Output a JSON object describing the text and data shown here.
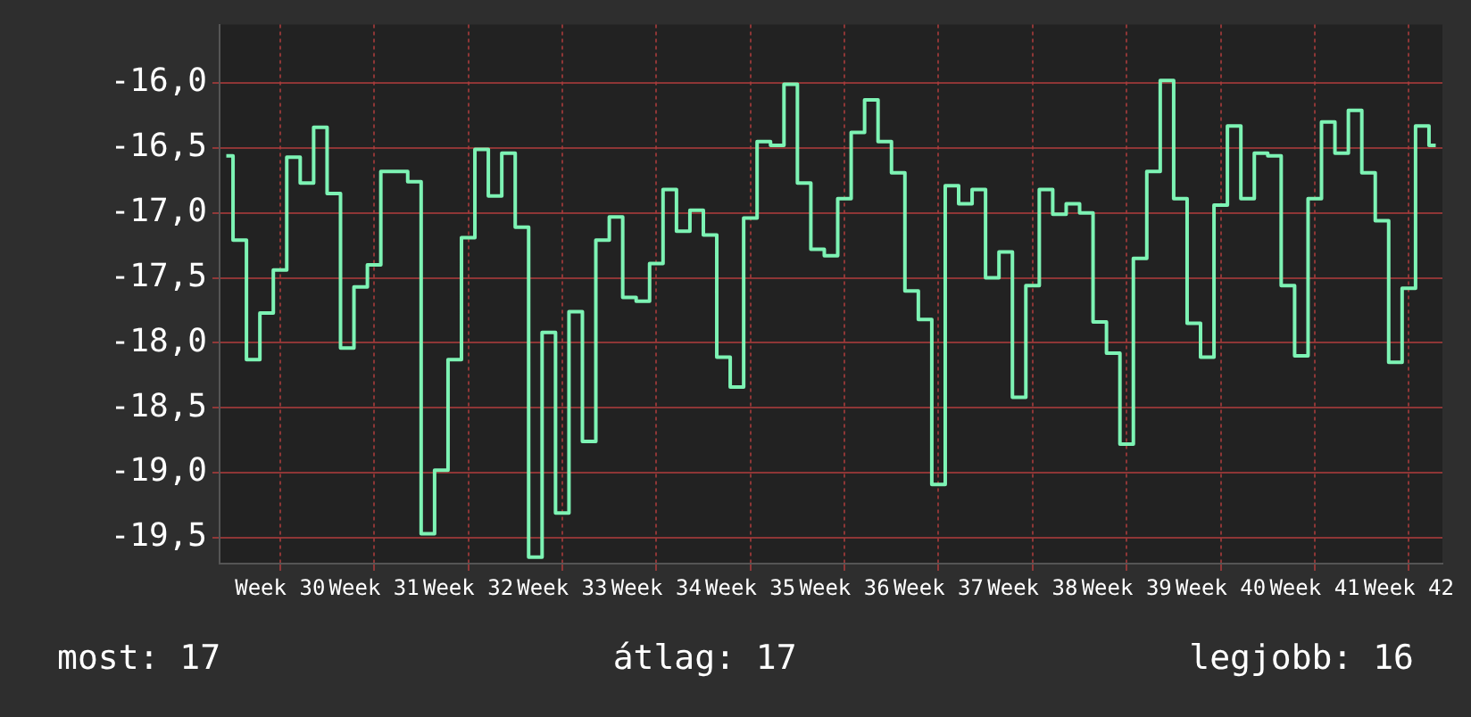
{
  "chart_data": {
    "type": "step",
    "categories": [
      null,
      null,
      null,
      null,
      "Week 30",
      null,
      null,
      null,
      null,
      null,
      null,
      "Week 31",
      null,
      null,
      null,
      null,
      null,
      null,
      "Week 32",
      null,
      null,
      null,
      null,
      null,
      null,
      "Week 33",
      null,
      null,
      null,
      null,
      null,
      null,
      "Week 34",
      null,
      null,
      null,
      null,
      null,
      null,
      "Week 35",
      null,
      null,
      null,
      null,
      null,
      null,
      "Week 36",
      null,
      null,
      null,
      null,
      null,
      null,
      "Week 37",
      null,
      null,
      null,
      null,
      null,
      null,
      "Week 38",
      null,
      null,
      null,
      null,
      null,
      null,
      "Week 39",
      null,
      null,
      null,
      null,
      null,
      null,
      "Week 40",
      null,
      null,
      null,
      null,
      null,
      null,
      "Week 41",
      null,
      null,
      null,
      null,
      null,
      null,
      "Week 42",
      null,
      null
    ],
    "series": [
      {
        "color": "#7df3b4",
        "values": [
          -16.56,
          -17.21,
          -18.13,
          -17.77,
          -17.44,
          -16.57,
          -16.77,
          -16.34,
          -16.85,
          -18.04,
          -17.57,
          -17.4,
          -16.68,
          -16.68,
          -16.76,
          -19.47,
          -18.98,
          -18.13,
          -17.19,
          -16.51,
          -16.87,
          -16.54,
          -17.11,
          -19.65,
          -17.92,
          -19.31,
          -17.76,
          -18.76,
          -17.21,
          -17.03,
          -17.65,
          -17.68,
          -17.39,
          -16.82,
          -17.14,
          -16.98,
          -17.17,
          -18.11,
          -18.34,
          -17.04,
          -16.45,
          -16.48,
          -16.01,
          -16.77,
          -17.28,
          -17.33,
          -16.89,
          -16.38,
          -16.13,
          -16.45,
          -16.69,
          -17.6,
          -17.82,
          -19.09,
          -16.79,
          -16.93,
          -16.82,
          -17.5,
          -17.3,
          -18.42,
          -17.56,
          -16.82,
          -17.01,
          -16.93,
          -17.0,
          -17.84,
          -18.08,
          -18.78,
          -17.35,
          -16.68,
          -15.98,
          -16.89,
          -17.85,
          -18.11,
          -16.94,
          -16.33,
          -16.89,
          -16.54,
          -16.56,
          -17.56,
          -18.1,
          -16.89,
          -16.3,
          -16.54,
          -16.21,
          -16.69,
          -17.06,
          -18.15,
          -17.58,
          -16.33,
          -16.48
        ]
      }
    ],
    "ylim": [
      -19.7,
      -15.55
    ],
    "yticks": [
      {
        "value": -19.5,
        "label": "-19,5"
      },
      {
        "value": -19,
        "label": "-19,0"
      },
      {
        "value": -18.5,
        "label": "-18,5"
      },
      {
        "value": -18,
        "label": "-18,0"
      },
      {
        "value": -17.5,
        "label": "-17,5"
      },
      {
        "value": -17,
        "label": "-17,0"
      },
      {
        "value": -16.5,
        "label": "-16,5"
      },
      {
        "value": -16,
        "label": "-16,0"
      }
    ],
    "grid": true,
    "legend": false,
    "annotations": [
      "most: 17",
      "átlag: 17",
      "legjobb: 16"
    ]
  }
}
